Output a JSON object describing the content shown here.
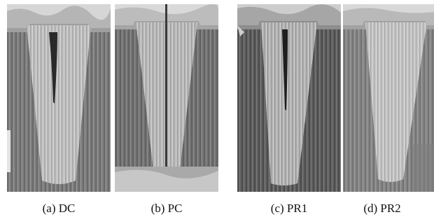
{
  "figure": {
    "panels": [
      {
        "id": "a",
        "caption": "(a) DC"
      },
      {
        "id": "b",
        "caption": "(b) PC"
      },
      {
        "id": "c",
        "caption": "(c) PR1"
      },
      {
        "id": "d",
        "caption": "(d) PR2"
      }
    ]
  }
}
